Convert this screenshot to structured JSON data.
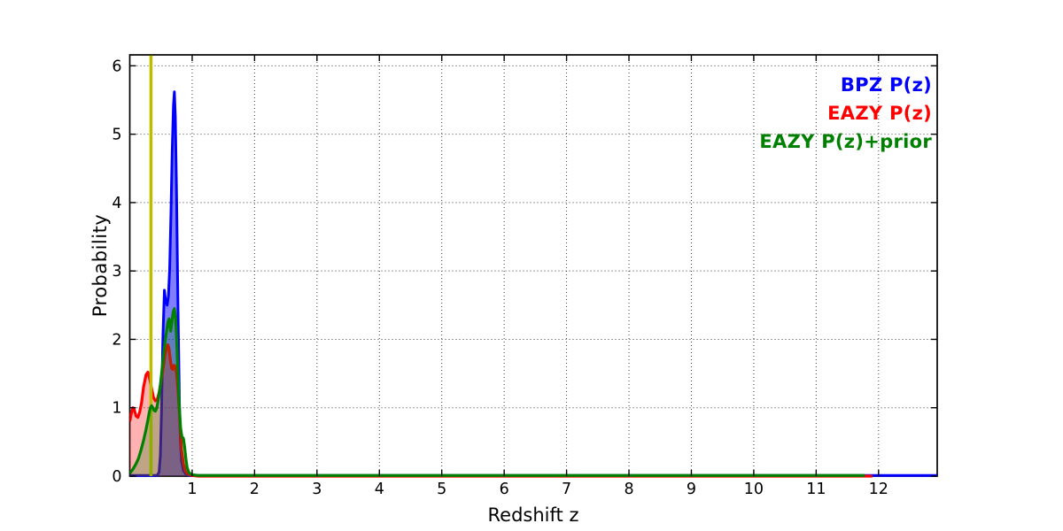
{
  "figure": {
    "background": "#ffffff",
    "frame_color": "#000000",
    "grid_color": "#3c3c3c"
  },
  "chart_data": {
    "type": "line",
    "title": "",
    "xlabel": "Redshift z",
    "ylabel": "Probability",
    "xlim": [
      0,
      12.94
    ],
    "ylim": [
      0,
      6.16
    ],
    "xticks": [
      1,
      2,
      3,
      4,
      5,
      6,
      7,
      8,
      9,
      10,
      11,
      12
    ],
    "yticks": [
      0,
      1,
      2,
      3,
      4,
      5,
      6
    ],
    "grid": {
      "on": true,
      "style": "dotted",
      "color": "#3c3c3c"
    },
    "legend": {
      "position": "top-right",
      "items": [
        {
          "label": "BPZ P(z)",
          "color": "#0000ff"
        },
        {
          "label": "EAZY P(z)",
          "color": "#ff0000"
        },
        {
          "label": "EAZY P(z)+prior",
          "color": "#008000"
        }
      ]
    },
    "marker_line": {
      "type": "vertical",
      "x": 0.34,
      "color": "#bcbc00",
      "width": 3.5
    },
    "series": [
      {
        "name": "BPZ P(z)",
        "color": "#0000ff",
        "fill_opacity": 0.5,
        "line_width": 3,
        "points": [
          [
            0,
            0.01
          ],
          [
            0.44,
            0.01
          ],
          [
            0.47,
            0.06
          ],
          [
            0.49,
            0.3
          ],
          [
            0.51,
            1.0
          ],
          [
            0.53,
            2.0
          ],
          [
            0.555,
            2.72
          ],
          [
            0.575,
            2.56
          ],
          [
            0.6,
            2.5
          ],
          [
            0.62,
            2.64
          ],
          [
            0.64,
            3.05
          ],
          [
            0.66,
            3.85
          ],
          [
            0.68,
            4.75
          ],
          [
            0.7,
            5.42
          ],
          [
            0.715,
            5.62
          ],
          [
            0.73,
            5.25
          ],
          [
            0.75,
            4.1
          ],
          [
            0.765,
            3.0
          ],
          [
            0.78,
            2.0
          ],
          [
            0.795,
            1.1
          ],
          [
            0.81,
            0.55
          ],
          [
            0.83,
            0.22
          ],
          [
            0.86,
            0.08
          ],
          [
            0.9,
            0.03
          ],
          [
            0.95,
            0.01
          ],
          [
            12.94,
            0.01
          ]
        ]
      },
      {
        "name": "EAZY P(z)",
        "color": "#ff0000",
        "fill_opacity": 0.3,
        "line_width": 3.2,
        "points": [
          [
            0,
            0.8
          ],
          [
            0.02,
            0.9
          ],
          [
            0.05,
            1.0
          ],
          [
            0.07,
            0.98
          ],
          [
            0.1,
            0.88
          ],
          [
            0.13,
            0.86
          ],
          [
            0.16,
            0.94
          ],
          [
            0.19,
            1.08
          ],
          [
            0.22,
            1.3
          ],
          [
            0.26,
            1.48
          ],
          [
            0.29,
            1.52
          ],
          [
            0.32,
            1.42
          ],
          [
            0.35,
            1.28
          ],
          [
            0.38,
            1.15
          ],
          [
            0.41,
            1.1
          ],
          [
            0.44,
            1.12
          ],
          [
            0.47,
            1.22
          ],
          [
            0.5,
            1.38
          ],
          [
            0.53,
            1.55
          ],
          [
            0.56,
            1.75
          ],
          [
            0.59,
            1.88
          ],
          [
            0.61,
            1.92
          ],
          [
            0.63,
            1.86
          ],
          [
            0.65,
            1.7
          ],
          [
            0.67,
            1.58
          ],
          [
            0.69,
            1.56
          ],
          [
            0.71,
            1.62
          ],
          [
            0.73,
            1.6
          ],
          [
            0.75,
            1.5
          ],
          [
            0.77,
            1.3
          ],
          [
            0.79,
            1.0
          ],
          [
            0.81,
            0.65
          ],
          [
            0.83,
            0.38
          ],
          [
            0.86,
            0.18
          ],
          [
            0.89,
            0.07
          ],
          [
            0.93,
            0.03
          ],
          [
            1.0,
            0.01
          ],
          [
            1.1,
            0
          ],
          [
            11.9,
            0
          ]
        ]
      },
      {
        "name": "EAZY P(z)+prior",
        "color": "#008000",
        "fill_opacity": 0.25,
        "line_width": 3.2,
        "points": [
          [
            0,
            0.04
          ],
          [
            0.05,
            0.1
          ],
          [
            0.1,
            0.18
          ],
          [
            0.14,
            0.26
          ],
          [
            0.18,
            0.38
          ],
          [
            0.22,
            0.52
          ],
          [
            0.26,
            0.68
          ],
          [
            0.29,
            0.82
          ],
          [
            0.31,
            0.92
          ],
          [
            0.33,
            1.0
          ],
          [
            0.35,
            1.03
          ],
          [
            0.37,
            1.0
          ],
          [
            0.39,
            0.96
          ],
          [
            0.41,
            0.95
          ],
          [
            0.43,
            0.99
          ],
          [
            0.45,
            1.08
          ],
          [
            0.47,
            1.2
          ],
          [
            0.49,
            1.33
          ],
          [
            0.51,
            1.5
          ],
          [
            0.53,
            1.68
          ],
          [
            0.55,
            1.85
          ],
          [
            0.57,
            2.0
          ],
          [
            0.59,
            2.12
          ],
          [
            0.61,
            2.25
          ],
          [
            0.63,
            2.3
          ],
          [
            0.655,
            2.12
          ],
          [
            0.675,
            2.26
          ],
          [
            0.695,
            2.4
          ],
          [
            0.715,
            2.45
          ],
          [
            0.735,
            2.3
          ],
          [
            0.755,
            1.92
          ],
          [
            0.775,
            1.42
          ],
          [
            0.795,
            1.0
          ],
          [
            0.815,
            0.7
          ],
          [
            0.835,
            0.58
          ],
          [
            0.86,
            0.55
          ],
          [
            0.88,
            0.42
          ],
          [
            0.9,
            0.25
          ],
          [
            0.92,
            0.12
          ],
          [
            0.95,
            0.05
          ],
          [
            1.0,
            0.02
          ],
          [
            1.1,
            0.01
          ],
          [
            11.78,
            0.01
          ]
        ]
      }
    ]
  }
}
